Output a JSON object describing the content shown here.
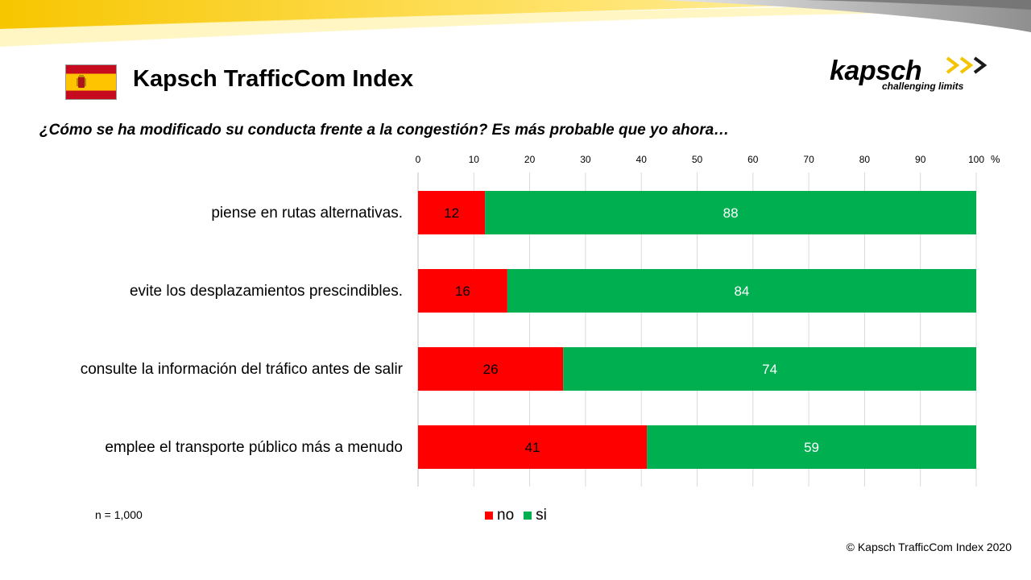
{
  "header": {
    "title": "Kapsch TrafficCom Index"
  },
  "flag": {
    "icon": "spain-flag-icon",
    "colors": {
      "red": "#c60b1e",
      "yellow": "#ffc400"
    }
  },
  "logo": {
    "wordmark": "kapsch",
    "arrows": ">>>",
    "tagline": "challenging limits",
    "arrow_color": "#f5c400"
  },
  "question": "¿Cómo se ha modificado su conducta frente a la congestión? Es más probable que yo ahora…",
  "chart_data": {
    "type": "bar",
    "orientation": "horizontal",
    "stacked": true,
    "unit_label": "%",
    "xlim": [
      0,
      100
    ],
    "x_ticks": [
      0,
      10,
      20,
      30,
      40,
      50,
      60,
      70,
      80,
      90,
      100
    ],
    "grid": true,
    "legend_position": "bottom",
    "categories": [
      "piense en rutas alternativas.",
      "evite los desplazamientos prescindibles.",
      "consulte la información del tráfico antes de salir",
      "emplee el transporte público más a menudo"
    ],
    "series": [
      {
        "name": "no",
        "color": "#ff0000",
        "values": [
          12,
          16,
          26,
          41
        ]
      },
      {
        "name": "si",
        "color": "#00b050",
        "values": [
          88,
          84,
          74,
          59
        ]
      }
    ]
  },
  "footnote": "n = 1,000",
  "copyright": "© Kapsch TrafficCom Index 2020"
}
